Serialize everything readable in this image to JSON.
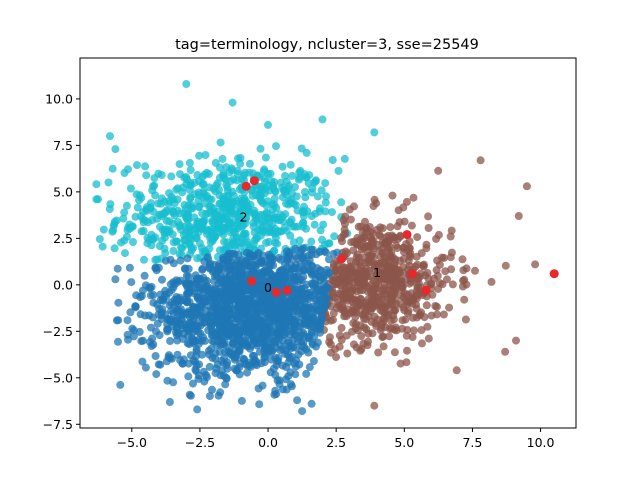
{
  "chart_data": {
    "type": "scatter",
    "title": "tag=terminology, ncluster=3, sse=25549",
    "xlabel": "",
    "ylabel": "",
    "xlim": [
      -6.9,
      11.3
    ],
    "ylim": [
      -7.7,
      12.2
    ],
    "x_ticks": [
      -5.0,
      -2.5,
      0.0,
      2.5,
      5.0,
      7.5,
      10.0
    ],
    "x_tick_labels": [
      "−5.0",
      "−2.5",
      "0.0",
      "2.5",
      "5.0",
      "7.5",
      "10.0"
    ],
    "y_ticks": [
      -7.5,
      -5.0,
      -2.5,
      0.0,
      2.5,
      5.0,
      7.5,
      10.0
    ],
    "y_tick_labels": [
      "−7.5",
      "−5.0",
      "−2.5",
      "0.0",
      "2.5",
      "5.0",
      "7.5",
      "10.0"
    ],
    "grid": false,
    "legend": "none",
    "series": [
      {
        "color": "#1f77b4",
        "label": "0",
        "label_pos": [
          0.0,
          -0.2
        ]
      },
      {
        "color": "#8c564b",
        "label": "1",
        "label_pos": [
          4.0,
          0.6
        ]
      },
      {
        "color": "#17becf",
        "label": "2",
        "label_pos": [
          -0.9,
          3.6
        ]
      }
    ],
    "cluster_dist": [
      {
        "cx": -0.5,
        "cy": -1.2,
        "sx": 2.0,
        "sy": 1.8,
        "xmin": -5.8,
        "xmax": 2.8,
        "ymin": -6.8,
        "ymax": 2.5,
        "n": 1500,
        "outliers": [
          [
            -5.5,
            -1.9
          ],
          [
            -5.6,
            0.3
          ],
          [
            -3.6,
            -6.3
          ],
          [
            -2.6,
            -6.7
          ],
          [
            1.6,
            -6.4
          ],
          [
            -4.1,
            -4.8
          ],
          [
            -4.3,
            -2.3
          ],
          [
            -3.9,
            -1.5
          ]
        ]
      },
      {
        "cx": 3.6,
        "cy": 0.3,
        "sx": 1.6,
        "sy": 1.7,
        "xmin": 1.5,
        "xmax": 10.0,
        "ymin": -6.5,
        "ymax": 6.8,
        "n": 650,
        "outliers": [
          [
            9.8,
            1.1
          ],
          [
            9.1,
            -3.0
          ],
          [
            9.5,
            5.3
          ],
          [
            7.8,
            6.7
          ],
          [
            3.9,
            -6.5
          ],
          [
            8.7,
            -3.6
          ],
          [
            9.2,
            3.7
          ]
        ]
      },
      {
        "cx": -1.5,
        "cy": 3.6,
        "sx": 2.0,
        "sy": 1.6,
        "xmin": -6.4,
        "xmax": 3.9,
        "ymin": 1.0,
        "ymax": 11.0,
        "n": 650,
        "outliers": [
          [
            -3.0,
            10.8
          ],
          [
            -1.3,
            9.8
          ],
          [
            -6.3,
            4.6
          ],
          [
            -5.8,
            8.0
          ],
          [
            -5.6,
            7.3
          ],
          [
            3.9,
            8.2
          ],
          [
            2.0,
            8.9
          ],
          [
            0.0,
            8.6
          ]
        ]
      }
    ],
    "centroids": [
      [
        -0.6,
        0.2
      ],
      [
        0.3,
        -0.4
      ],
      [
        0.7,
        -0.3
      ],
      [
        2.7,
        1.4
      ],
      [
        5.1,
        2.7
      ],
      [
        5.3,
        0.6
      ],
      [
        5.8,
        -0.3
      ],
      [
        10.5,
        0.6
      ],
      [
        -0.8,
        5.3
      ],
      [
        -0.5,
        5.6
      ]
    ],
    "centroid_color": "#e8282a"
  }
}
